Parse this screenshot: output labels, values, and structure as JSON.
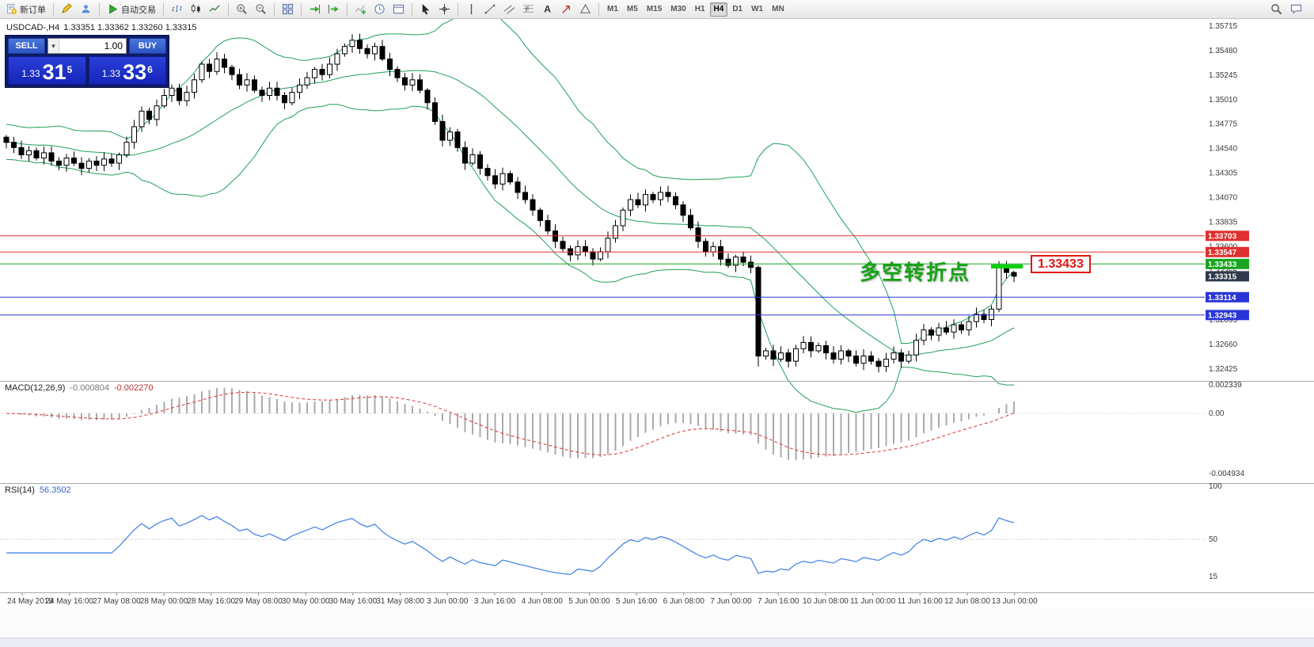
{
  "toolbar": {
    "groups": [
      [
        {
          "name": "new-order-button",
          "icon": "neworder",
          "icon_name": "new-order-icon",
          "label": "新订单"
        }
      ],
      [
        {
          "name": "metaeditor-button",
          "icon": "editor",
          "icon_name": "pencil-icon"
        },
        {
          "name": "data-window-button",
          "icon": "profile",
          "icon_name": "profile-icon"
        }
      ],
      [
        {
          "name": "autotrading-button",
          "icon": "autoplay",
          "icon_name": "autotrading-play-icon",
          "label": "自动交易"
        }
      ],
      [
        {
          "name": "bar-chart-mode-button",
          "icon": "bars",
          "icon_name": "bar-chart-icon"
        },
        {
          "name": "candlestick-mode-button",
          "icon": "candles",
          "icon_name": "candlestick-chart-icon"
        },
        {
          "name": "line-chart-mode-button",
          "icon": "linechart",
          "icon_name": "line-chart-icon"
        }
      ],
      [
        {
          "name": "zoom-in-button",
          "icon": "zoomin",
          "icon_name": "zoom-in-icon"
        },
        {
          "name": "zoom-out-button",
          "icon": "zoomout",
          "icon_name": "zoom-out-icon"
        }
      ],
      [
        {
          "name": "tile-windows-button",
          "icon": "tile",
          "icon_name": "tile-windows-icon"
        }
      ],
      [
        {
          "name": "auto-scroll-button",
          "icon": "autoscroll",
          "icon_name": "auto-scroll-icon"
        },
        {
          "name": "chart-shift-button",
          "icon": "shift",
          "icon_name": "chart-shift-icon"
        }
      ],
      [
        {
          "name": "indicators-button",
          "icon": "indicators",
          "icon_name": "indicators-icon"
        },
        {
          "name": "periods-button",
          "icon": "clock",
          "icon_name": "clock-icon"
        },
        {
          "name": "templates-button",
          "icon": "template",
          "icon_name": "template-icon"
        }
      ],
      [
        {
          "name": "cursor-tool-button",
          "icon": "cursor",
          "icon_name": "cursor-icon"
        },
        {
          "name": "crosshair-tool-button",
          "icon": "crosshair",
          "icon_name": "crosshair-icon"
        }
      ],
      [
        {
          "name": "vertical-line-tool-button",
          "icon": "vline",
          "icon_name": "vertical-line-icon"
        },
        {
          "name": "trendline-tool-button",
          "icon": "trend",
          "icon_name": "trendline-icon"
        },
        {
          "name": "channel-tool-button",
          "icon": "channel",
          "icon_name": "channel-icon"
        },
        {
          "name": "fibonacci-tool-button",
          "icon": "fibo",
          "icon_name": "fibonacci-icon"
        },
        {
          "name": "text-tool-button",
          "icon": "textlabel",
          "icon_name": "text-tool-icon"
        },
        {
          "name": "arrow-tool-button",
          "icon": "arrowtool",
          "icon_name": "arrow-tool-icon"
        },
        {
          "name": "shapes-tool-button",
          "icon": "shapes",
          "icon_name": "shapes-icon"
        }
      ]
    ],
    "timeframes": [
      {
        "name": "timeframe-m1-button",
        "label": "M1"
      },
      {
        "name": "timeframe-m5-button",
        "label": "M5"
      },
      {
        "name": "timeframe-m15-button",
        "label": "M15"
      },
      {
        "name": "timeframe-m30-button",
        "label": "M30"
      },
      {
        "name": "timeframe-h1-button",
        "label": "H1"
      },
      {
        "name": "timeframe-h4-button",
        "label": "H4",
        "active": true
      },
      {
        "name": "timeframe-d1-button",
        "label": "D1"
      },
      {
        "name": "timeframe-w1-button",
        "label": "W1"
      },
      {
        "name": "timeframe-mn-button",
        "label": "MN"
      }
    ],
    "right": [
      {
        "name": "search-button",
        "icon": "search",
        "icon_name": "search-icon"
      },
      {
        "name": "chat-button",
        "icon": "chat",
        "icon_name": "chat-icon"
      }
    ]
  },
  "trade_panel": {
    "sell_label": "SELL",
    "buy_label": "BUY",
    "volume": "1.00",
    "volume_dropdown_glyph": "▾",
    "bid": {
      "prefix": "1.33",
      "big": "31",
      "sup": "5"
    },
    "ask": {
      "prefix": "1.33",
      "big": "33",
      "sup": "6"
    }
  },
  "chart": {
    "title_symbol": "USDCAD-,H4",
    "title_ohlc": "1.33351 1.33362 1.33260 1.33315",
    "annotation": "多空转折点",
    "callout_price": "1.33433"
  },
  "macd_panel": {
    "label": "MACD(12,26,9)",
    "value_main": "-0.000804",
    "value_signal": "-0.002270"
  },
  "rsi_panel": {
    "label": "RSI(14)",
    "value": "56.3502"
  },
  "date_axis": [
    "24 May 2019",
    "24 May 16:00",
    "27 May 08:00",
    "28 May 00:00",
    "28 May 16:00",
    "29 May 08:00",
    "30 May 00:00",
    "30 May 16:00",
    "31 May 08:00",
    "3 Jun 00:00",
    "3 Jun 16:00",
    "4 Jun 08:00",
    "5 Jun 00:00",
    "5 Jun 16:00",
    "6 Jun 08:00",
    "7 Jun 00:00",
    "7 Jun 16:00",
    "10 Jun 08:00",
    "11 Jun 00:00",
    "11 Jun 16:00",
    "12 Jun 08:00",
    "13 Jun 00:00"
  ],
  "colors": {
    "bull": "#ffffff",
    "bear": "#000000",
    "bands": "#1fa05a",
    "resistance": "#e03030",
    "pivot": "#18a51f",
    "support": "#2a35d8",
    "current_tag": "#2f3b4c",
    "macd_hist": "#aaaaaa",
    "macd_signal": "#e03030",
    "rsi_line": "#4a86e8",
    "annotation": "#15a315",
    "callout": "#e01515",
    "marker": "#0ad00a"
  },
  "chart_data": {
    "type": "candlestick",
    "symbol": "USDCAD-",
    "timeframe": "H4",
    "current_ohlc": {
      "open": 1.33351,
      "high": 1.33362,
      "low": 1.3326,
      "close": 1.33315
    },
    "price_axis": [
      1.35715,
      1.3548,
      1.35245,
      1.3501,
      1.34775,
      1.3454,
      1.34305,
      1.3407,
      1.33835,
      1.336,
      1.33365,
      1.3313,
      1.32895,
      1.3266,
      1.32425
    ],
    "first_open": 1.3465,
    "closes": [
      1.346,
      1.3455,
      1.3448,
      1.3452,
      1.3445,
      1.345,
      1.3442,
      1.3438,
      1.3445,
      1.344,
      1.3435,
      1.3442,
      1.3438,
      1.3444,
      1.344,
      1.3448,
      1.346,
      1.3475,
      1.349,
      1.3482,
      1.3495,
      1.3505,
      1.3512,
      1.35,
      1.3508,
      1.352,
      1.3535,
      1.3528,
      1.354,
      1.3532,
      1.3525,
      1.3515,
      1.352,
      1.351,
      1.3505,
      1.3512,
      1.3505,
      1.3498,
      1.3508,
      1.3515,
      1.3522,
      1.353,
      1.3525,
      1.3535,
      1.3545,
      1.3552,
      1.3558,
      1.355,
      1.3545,
      1.3552,
      1.354,
      1.353,
      1.3522,
      1.3515,
      1.352,
      1.351,
      1.3498,
      1.348,
      1.3462,
      1.347,
      1.3455,
      1.344,
      1.3448,
      1.3435,
      1.3428,
      1.342,
      1.343,
      1.3422,
      1.3412,
      1.3405,
      1.3395,
      1.3385,
      1.3375,
      1.3365,
      1.3358,
      1.3352,
      1.336,
      1.3355,
      1.3348,
      1.3355,
      1.3368,
      1.338,
      1.3395,
      1.3405,
      1.34,
      1.341,
      1.3405,
      1.3412,
      1.3408,
      1.34,
      1.339,
      1.3378,
      1.3365,
      1.3355,
      1.336,
      1.3348,
      1.3342,
      1.335,
      1.3345,
      1.334,
      1.3255,
      1.326,
      1.3252,
      1.3258,
      1.325,
      1.3262,
      1.3268,
      1.326,
      1.3265,
      1.3258,
      1.3252,
      1.326,
      1.3255,
      1.3248,
      1.3255,
      1.325,
      1.3245,
      1.3252,
      1.3258,
      1.325,
      1.3256,
      1.327,
      1.328,
      1.3275,
      1.3282,
      1.3278,
      1.3285,
      1.328,
      1.3288,
      1.3295,
      1.329,
      1.33,
      1.334,
      1.33351,
      1.33315
    ],
    "special_candles": {
      "100": [
        1.334,
        1.3342,
        1.3245,
        1.3255
      ],
      "134": [
        1.33351,
        1.33362,
        1.3326,
        1.33315
      ]
    },
    "indicators": {
      "bollinger": {
        "period": 20,
        "deviation": 2
      },
      "macd": {
        "fast": 12,
        "slow": 26,
        "signal": 9
      },
      "rsi": {
        "period": 14
      }
    },
    "hlines": [
      {
        "price": 1.33703,
        "color": "#e03030",
        "name": "resistance-line-1"
      },
      {
        "price": 1.33547,
        "color": "#e03030",
        "name": "resistance-line-2"
      },
      {
        "price": 1.33433,
        "color": "#18a51f",
        "name": "pivot-line"
      },
      {
        "price": 1.33114,
        "color": "#2a35d8",
        "name": "support-line-1"
      },
      {
        "price": 1.32943,
        "color": "#2a35d8",
        "name": "support-line-2"
      }
    ],
    "current_price": 1.33315,
    "macd_axis": [
      0.002339,
      0,
      -0.004934
    ],
    "rsi_axis": [
      100,
      50,
      15
    ],
    "rsi_level_lines": [
      50
    ]
  }
}
